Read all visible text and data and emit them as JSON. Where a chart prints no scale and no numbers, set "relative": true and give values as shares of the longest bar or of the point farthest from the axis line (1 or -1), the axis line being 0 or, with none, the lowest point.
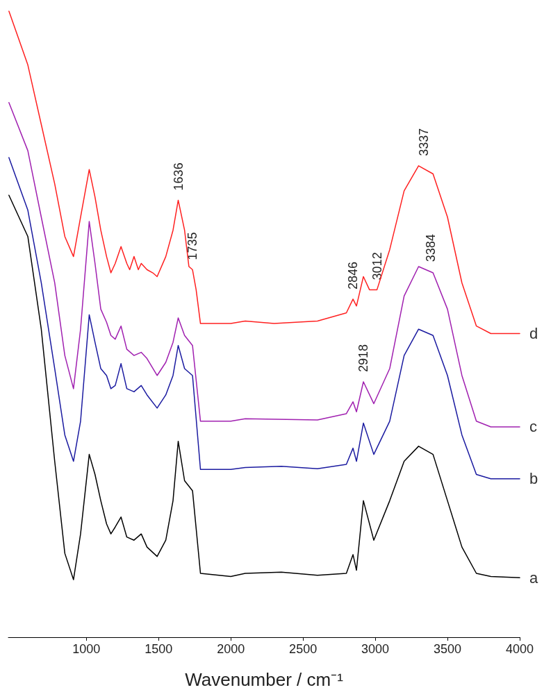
{
  "chart_data": {
    "type": "line",
    "xlabel": "Wavenumber / cm⁻¹",
    "relative": true,
    "xlim": [
      460,
      4000
    ],
    "xticks": [
      1000,
      1500,
      2000,
      2500,
      3000,
      3500,
      4000
    ],
    "grid": false,
    "legend": false,
    "marker": "none",
    "line_style": "solid",
    "series": [
      {
        "name": "a",
        "color": "#000000",
        "x": [
          464,
          595,
          688,
          781,
          851,
          911,
          960,
          1020,
          1060,
          1100,
          1140,
          1170,
          1200,
          1240,
          1280,
          1330,
          1380,
          1420,
          1490,
          1550,
          1600,
          1636,
          1680,
          1735,
          1790,
          2000,
          2100,
          2350,
          2600,
          2800,
          2846,
          2870,
          2918,
          2990,
          3100,
          3200,
          3300,
          3400,
          3500,
          3600,
          3700,
          3800,
          4000
        ],
        "values": [
          0.706,
          0.64,
          0.492,
          0.281,
          0.134,
          0.092,
          0.165,
          0.292,
          0.26,
          0.218,
          0.181,
          0.165,
          0.176,
          0.192,
          0.16,
          0.155,
          0.165,
          0.144,
          0.129,
          0.155,
          0.218,
          0.313,
          0.25,
          0.234,
          0.102,
          0.097,
          0.102,
          0.104,
          0.099,
          0.102,
          0.132,
          0.107,
          0.218,
          0.155,
          0.218,
          0.281,
          0.305,
          0.292,
          0.218,
          0.144,
          0.102,
          0.097,
          0.095
        ]
      },
      {
        "name": "b",
        "color": "#1a1aa0",
        "x": [
          464,
          595,
          688,
          781,
          851,
          911,
          960,
          1020,
          1060,
          1100,
          1140,
          1170,
          1200,
          1240,
          1280,
          1330,
          1380,
          1420,
          1490,
          1550,
          1600,
          1636,
          1680,
          1735,
          1790,
          2000,
          2100,
          2350,
          2600,
          2800,
          2846,
          2870,
          2918,
          2990,
          3100,
          3200,
          3300,
          3400,
          3500,
          3600,
          3700,
          3800,
          4000
        ],
        "values": [
          0.766,
          0.682,
          0.566,
          0.429,
          0.323,
          0.281,
          0.345,
          0.515,
          0.471,
          0.429,
          0.418,
          0.397,
          0.402,
          0.437,
          0.397,
          0.392,
          0.402,
          0.387,
          0.366,
          0.387,
          0.418,
          0.466,
          0.429,
          0.418,
          0.268,
          0.268,
          0.271,
          0.273,
          0.269,
          0.276,
          0.302,
          0.281,
          0.342,
          0.292,
          0.345,
          0.45,
          0.492,
          0.482,
          0.418,
          0.323,
          0.26,
          0.253,
          0.253
        ]
      },
      {
        "name": "c",
        "color": "#a020b0",
        "x": [
          464,
          595,
          688,
          781,
          851,
          911,
          960,
          1020,
          1060,
          1100,
          1140,
          1170,
          1200,
          1240,
          1280,
          1330,
          1380,
          1420,
          1490,
          1550,
          1600,
          1636,
          1680,
          1735,
          1790,
          2000,
          2100,
          2600,
          2800,
          2846,
          2870,
          2918,
          2990,
          3100,
          3200,
          3300,
          3400,
          3500,
          3600,
          3700,
          3800,
          4000
        ],
        "values": [
          0.854,
          0.777,
          0.671,
          0.566,
          0.45,
          0.397,
          0.492,
          0.664,
          0.597,
          0.524,
          0.503,
          0.482,
          0.476,
          0.497,
          0.46,
          0.45,
          0.455,
          0.445,
          0.418,
          0.439,
          0.471,
          0.51,
          0.482,
          0.466,
          0.345,
          0.345,
          0.349,
          0.347,
          0.357,
          0.376,
          0.36,
          0.408,
          0.373,
          0.429,
          0.545,
          0.592,
          0.582,
          0.524,
          0.418,
          0.345,
          0.336,
          0.336
        ]
      },
      {
        "name": "d",
        "color": "#ff2020",
        "x": [
          464,
          595,
          688,
          781,
          851,
          911,
          960,
          1020,
          1060,
          1100,
          1140,
          1170,
          1200,
          1240,
          1280,
          1300,
          1330,
          1360,
          1380,
          1420,
          1460,
          1490,
          1550,
          1600,
          1636,
          1680,
          1710,
          1735,
          1760,
          1790,
          2000,
          2100,
          2300,
          2600,
          2800,
          2846,
          2870,
          2918,
          2960,
          3012,
          3100,
          3200,
          3300,
          3400,
          3500,
          3600,
          3700,
          3800,
          4000
        ],
        "values": [
          1.0,
          0.914,
          0.819,
          0.724,
          0.64,
          0.608,
          0.671,
          0.747,
          0.703,
          0.65,
          0.608,
          0.582,
          0.597,
          0.624,
          0.597,
          0.587,
          0.608,
          0.587,
          0.597,
          0.587,
          0.582,
          0.576,
          0.608,
          0.65,
          0.698,
          0.65,
          0.592,
          0.587,
          0.555,
          0.501,
          0.501,
          0.505,
          0.501,
          0.505,
          0.518,
          0.54,
          0.529,
          0.576,
          0.555,
          0.555,
          0.619,
          0.713,
          0.753,
          0.74,
          0.671,
          0.566,
          0.497,
          0.485,
          0.485
        ]
      }
    ],
    "annotations": [
      {
        "text": "1636",
        "x": 1636,
        "y": 0.698
      },
      {
        "text": "1735",
        "x": 1735,
        "y": 0.587
      },
      {
        "text": "2846",
        "x": 2846,
        "y": 0.54
      },
      {
        "text": "3012",
        "x": 3012,
        "y": 0.555
      },
      {
        "text": "3337",
        "x": 3337,
        "y": 0.753
      },
      {
        "text": "2918",
        "x": 2918,
        "y": 0.408
      },
      {
        "text": "3384",
        "x": 3384,
        "y": 0.584
      }
    ]
  }
}
